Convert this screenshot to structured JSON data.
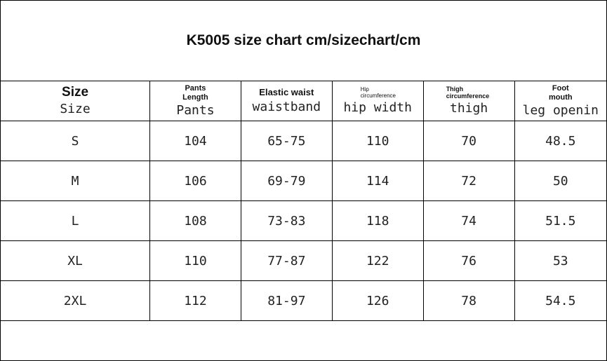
{
  "title": "K5005 size chart cm/sizechart/cm",
  "headers": [
    {
      "en": "Size",
      "sub": "Size"
    },
    {
      "en": "Pants Length",
      "sub": "Pants"
    },
    {
      "en": "Elastic waist",
      "sub": "waistband"
    },
    {
      "en": "Hip circumference",
      "sub": "hip width"
    },
    {
      "en": "Thigh circumference",
      "sub": "thigh"
    },
    {
      "en": "Foot mouth",
      "sub": "leg openin"
    }
  ],
  "rows": [
    [
      "S",
      "104",
      "65-75",
      "110",
      "70",
      "48.5"
    ],
    [
      "M",
      "106",
      "69-79",
      "114",
      "72",
      "50"
    ],
    [
      "L",
      "108",
      "73-83",
      "118",
      "74",
      "51.5"
    ],
    [
      "XL",
      "110",
      "77-87",
      "122",
      "76",
      "53"
    ],
    [
      "2XL",
      "112",
      "81-97",
      "126",
      "78",
      "54.5"
    ]
  ]
}
